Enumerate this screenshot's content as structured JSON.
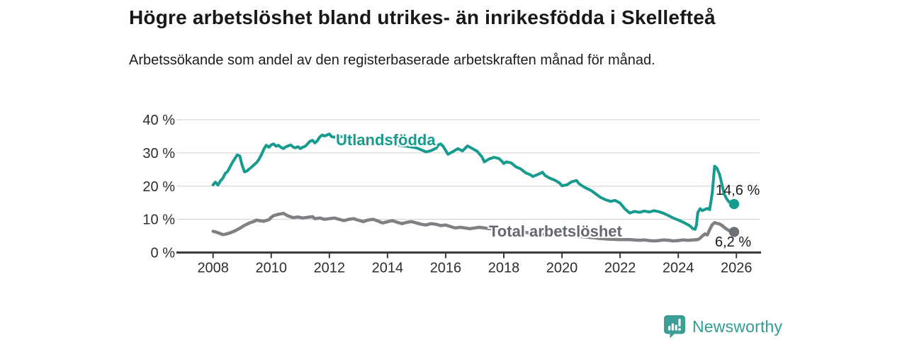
{
  "chart_data": {
    "type": "line",
    "title": "Högre arbetslöshet bland utrikes- än inrikesfödda i Skellefteå",
    "subtitle": "Arbetssökande som andel av den registerbaserade arbetskraften månad för månad.",
    "xlabel": "",
    "ylabel": "",
    "grid": true,
    "legend_position": "inline-labels",
    "xlim": [
      2006.8,
      2026.8
    ],
    "ylim": [
      0,
      40
    ],
    "x_ticks": [
      2008,
      2010,
      2012,
      2014,
      2016,
      2018,
      2020,
      2022,
      2024,
      2026
    ],
    "y_tick_values": [
      0,
      10,
      20,
      30,
      40
    ],
    "y_tick_labels": [
      "0 %",
      "10 %",
      "20 %",
      "30 %",
      "40 %"
    ],
    "axis_color": "#3a3a3a",
    "grid_color": "#d8d8d8",
    "tick_label_color": "#2e2e2e",
    "series": [
      {
        "name": "Utlandsfödda",
        "color": "#169b8e",
        "label_color": "#169b8e",
        "dot_color": "#169b8e",
        "end_label": "14,6 %",
        "end_value": 14.6,
        "points": [
          [
            2008.0,
            20.4
          ],
          [
            2008.08,
            21.2
          ],
          [
            2008.17,
            20.3
          ],
          [
            2008.25,
            21.6
          ],
          [
            2008.33,
            22.3
          ],
          [
            2008.42,
            23.8
          ],
          [
            2008.5,
            24.4
          ],
          [
            2008.58,
            25.7
          ],
          [
            2008.67,
            27.2
          ],
          [
            2008.75,
            28.3
          ],
          [
            2008.83,
            29.4
          ],
          [
            2008.92,
            29.1
          ],
          [
            2009.0,
            26.3
          ],
          [
            2009.08,
            24.3
          ],
          [
            2009.17,
            24.6
          ],
          [
            2009.25,
            25.2
          ],
          [
            2009.33,
            25.8
          ],
          [
            2009.42,
            26.5
          ],
          [
            2009.5,
            27.1
          ],
          [
            2009.58,
            28.1
          ],
          [
            2009.67,
            29.6
          ],
          [
            2009.75,
            31.2
          ],
          [
            2009.83,
            32.3
          ],
          [
            2009.92,
            31.7
          ],
          [
            2010.0,
            32.4
          ],
          [
            2010.08,
            32.7
          ],
          [
            2010.17,
            32.0
          ],
          [
            2010.25,
            32.3
          ],
          [
            2010.33,
            31.7
          ],
          [
            2010.42,
            31.3
          ],
          [
            2010.5,
            31.8
          ],
          [
            2010.58,
            32.1
          ],
          [
            2010.67,
            32.4
          ],
          [
            2010.75,
            31.8
          ],
          [
            2010.83,
            31.5
          ],
          [
            2010.92,
            31.9
          ],
          [
            2011.0,
            31.3
          ],
          [
            2011.08,
            31.7
          ],
          [
            2011.17,
            32.0
          ],
          [
            2011.25,
            32.7
          ],
          [
            2011.33,
            33.5
          ],
          [
            2011.42,
            33.8
          ],
          [
            2011.5,
            33.0
          ],
          [
            2011.58,
            33.6
          ],
          [
            2011.67,
            34.8
          ],
          [
            2011.75,
            35.4
          ],
          [
            2011.83,
            35.1
          ],
          [
            2011.92,
            35.4
          ],
          [
            2012.0,
            35.7
          ],
          [
            2012.08,
            34.9
          ],
          [
            2012.17,
            34.7
          ],
          [
            2012.25,
            35.0
          ],
          [
            2012.5,
            34.8
          ],
          [
            2012.75,
            34.5
          ],
          [
            2013.0,
            34.1
          ],
          [
            2013.25,
            33.8
          ],
          [
            2013.5,
            33.5
          ],
          [
            2013.75,
            33.2
          ],
          [
            2014.0,
            32.9
          ],
          [
            2014.25,
            32.5
          ],
          [
            2014.5,
            32.2
          ],
          [
            2014.75,
            31.9
          ],
          [
            2015.0,
            31.5
          ],
          [
            2015.17,
            30.9
          ],
          [
            2015.33,
            30.3
          ],
          [
            2015.5,
            30.7
          ],
          [
            2015.67,
            31.4
          ],
          [
            2015.75,
            32.4
          ],
          [
            2015.83,
            32.7
          ],
          [
            2015.92,
            31.9
          ],
          [
            2016.08,
            29.6
          ],
          [
            2016.25,
            30.4
          ],
          [
            2016.42,
            31.3
          ],
          [
            2016.58,
            30.6
          ],
          [
            2016.75,
            32.1
          ],
          [
            2016.92,
            31.3
          ],
          [
            2017.08,
            30.5
          ],
          [
            2017.25,
            28.8
          ],
          [
            2017.33,
            27.3
          ],
          [
            2017.5,
            28.2
          ],
          [
            2017.67,
            28.7
          ],
          [
            2017.83,
            28.3
          ],
          [
            2017.92,
            27.6
          ],
          [
            2018.0,
            26.8
          ],
          [
            2018.08,
            27.3
          ],
          [
            2018.25,
            27.0
          ],
          [
            2018.42,
            25.8
          ],
          [
            2018.58,
            25.2
          ],
          [
            2018.75,
            24.0
          ],
          [
            2018.92,
            23.4
          ],
          [
            2019.0,
            22.9
          ],
          [
            2019.17,
            23.5
          ],
          [
            2019.33,
            24.2
          ],
          [
            2019.42,
            23.2
          ],
          [
            2019.58,
            22.4
          ],
          [
            2019.75,
            21.8
          ],
          [
            2019.92,
            20.9
          ],
          [
            2020.0,
            20.1
          ],
          [
            2020.17,
            20.4
          ],
          [
            2020.33,
            21.3
          ],
          [
            2020.5,
            21.7
          ],
          [
            2020.58,
            20.8
          ],
          [
            2020.67,
            20.2
          ],
          [
            2020.83,
            19.4
          ],
          [
            2021.0,
            18.7
          ],
          [
            2021.17,
            17.6
          ],
          [
            2021.33,
            16.6
          ],
          [
            2021.5,
            15.9
          ],
          [
            2021.67,
            15.4
          ],
          [
            2021.83,
            15.7
          ],
          [
            2022.0,
            14.9
          ],
          [
            2022.17,
            13.1
          ],
          [
            2022.33,
            11.9
          ],
          [
            2022.5,
            12.4
          ],
          [
            2022.67,
            12.1
          ],
          [
            2022.83,
            12.5
          ],
          [
            2023.0,
            12.2
          ],
          [
            2023.17,
            12.6
          ],
          [
            2023.33,
            12.3
          ],
          [
            2023.5,
            11.8
          ],
          [
            2023.67,
            11.1
          ],
          [
            2023.83,
            10.4
          ],
          [
            2024.0,
            9.8
          ],
          [
            2024.17,
            9.1
          ],
          [
            2024.33,
            8.4
          ],
          [
            2024.42,
            7.9
          ],
          [
            2024.5,
            7.2
          ],
          [
            2024.58,
            7.0
          ],
          [
            2024.63,
            8.5
          ],
          [
            2024.67,
            12.0
          ],
          [
            2024.75,
            13.2
          ],
          [
            2024.83,
            12.6
          ],
          [
            2024.92,
            13.0
          ],
          [
            2025.0,
            13.3
          ],
          [
            2025.08,
            12.9
          ],
          [
            2025.17,
            18.0
          ],
          [
            2025.25,
            26.0
          ],
          [
            2025.33,
            25.4
          ],
          [
            2025.42,
            23.6
          ],
          [
            2025.5,
            20.6
          ],
          [
            2025.58,
            17.6
          ],
          [
            2025.67,
            16.1
          ],
          [
            2025.75,
            15.2
          ],
          [
            2025.83,
            14.8
          ],
          [
            2025.92,
            14.6
          ]
        ]
      },
      {
        "name": "Total arbetslöshet",
        "color": "#7e8084",
        "label_color": "#65696f",
        "dot_color": "#6d7076",
        "end_label": "6,2 %",
        "end_value": 6.2,
        "points": [
          [
            2008.0,
            6.4
          ],
          [
            2008.08,
            6.2
          ],
          [
            2008.25,
            5.7
          ],
          [
            2008.33,
            5.4
          ],
          [
            2008.42,
            5.5
          ],
          [
            2008.58,
            5.9
          ],
          [
            2008.75,
            6.5
          ],
          [
            2008.92,
            7.3
          ],
          [
            2009.08,
            8.2
          ],
          [
            2009.25,
            8.9
          ],
          [
            2009.42,
            9.4
          ],
          [
            2009.5,
            9.8
          ],
          [
            2009.58,
            9.6
          ],
          [
            2009.75,
            9.4
          ],
          [
            2009.92,
            9.9
          ],
          [
            2010.0,
            10.6
          ],
          [
            2010.08,
            11.1
          ],
          [
            2010.25,
            11.5
          ],
          [
            2010.42,
            11.8
          ],
          [
            2010.5,
            11.4
          ],
          [
            2010.58,
            11.0
          ],
          [
            2010.75,
            10.5
          ],
          [
            2010.92,
            10.7
          ],
          [
            2011.08,
            10.4
          ],
          [
            2011.25,
            10.6
          ],
          [
            2011.42,
            10.8
          ],
          [
            2011.5,
            10.2
          ],
          [
            2011.67,
            10.4
          ],
          [
            2011.83,
            10.0
          ],
          [
            2012.0,
            10.2
          ],
          [
            2012.17,
            10.4
          ],
          [
            2012.33,
            10.0
          ],
          [
            2012.5,
            9.6
          ],
          [
            2012.67,
            10.0
          ],
          [
            2012.83,
            10.2
          ],
          [
            2013.0,
            9.7
          ],
          [
            2013.17,
            9.3
          ],
          [
            2013.33,
            9.8
          ],
          [
            2013.5,
            10.0
          ],
          [
            2013.67,
            9.5
          ],
          [
            2013.83,
            8.9
          ],
          [
            2014.0,
            9.3
          ],
          [
            2014.17,
            9.6
          ],
          [
            2014.33,
            9.1
          ],
          [
            2014.5,
            8.7
          ],
          [
            2014.67,
            9.1
          ],
          [
            2014.83,
            9.3
          ],
          [
            2015.0,
            8.9
          ],
          [
            2015.17,
            8.5
          ],
          [
            2015.33,
            8.3
          ],
          [
            2015.5,
            8.7
          ],
          [
            2015.67,
            8.5
          ],
          [
            2015.83,
            8.1
          ],
          [
            2016.0,
            8.3
          ],
          [
            2016.17,
            7.8
          ],
          [
            2016.33,
            7.4
          ],
          [
            2016.5,
            7.6
          ],
          [
            2016.67,
            7.4
          ],
          [
            2016.83,
            7.2
          ],
          [
            2017.0,
            7.4
          ],
          [
            2017.17,
            7.6
          ],
          [
            2017.33,
            7.4
          ],
          [
            2017.5,
            7.2
          ],
          [
            2017.75,
            7.0
          ],
          [
            2018.0,
            6.7
          ],
          [
            2018.33,
            6.4
          ],
          [
            2018.67,
            6.1
          ],
          [
            2019.0,
            5.8
          ],
          [
            2019.33,
            5.5
          ],
          [
            2019.67,
            5.3
          ],
          [
            2020.0,
            5.1
          ],
          [
            2020.33,
            5.0
          ],
          [
            2020.67,
            4.8
          ],
          [
            2021.0,
            4.5
          ],
          [
            2021.33,
            4.2
          ],
          [
            2021.67,
            4.0
          ],
          [
            2022.0,
            3.9
          ],
          [
            2022.33,
            3.9
          ],
          [
            2022.5,
            3.8
          ],
          [
            2022.67,
            3.7
          ],
          [
            2022.83,
            3.8
          ],
          [
            2023.0,
            3.6
          ],
          [
            2023.17,
            3.5
          ],
          [
            2023.33,
            3.6
          ],
          [
            2023.5,
            3.8
          ],
          [
            2023.67,
            3.7
          ],
          [
            2023.83,
            3.5
          ],
          [
            2024.0,
            3.6
          ],
          [
            2024.17,
            3.8
          ],
          [
            2024.33,
            3.7
          ],
          [
            2024.5,
            3.8
          ],
          [
            2024.67,
            3.9
          ],
          [
            2024.75,
            4.3
          ],
          [
            2024.83,
            5.0
          ],
          [
            2024.92,
            5.6
          ],
          [
            2025.0,
            5.3
          ],
          [
            2025.08,
            6.9
          ],
          [
            2025.17,
            8.4
          ],
          [
            2025.25,
            9.0
          ],
          [
            2025.33,
            8.8
          ],
          [
            2025.42,
            8.6
          ],
          [
            2025.5,
            8.2
          ],
          [
            2025.58,
            7.6
          ],
          [
            2025.67,
            7.0
          ],
          [
            2025.75,
            6.6
          ],
          [
            2025.83,
            6.4
          ],
          [
            2025.92,
            6.2
          ]
        ]
      }
    ]
  },
  "footer": {
    "brand": "Newsworthy",
    "brand_color": "#2f9c94",
    "icon_color": "#3d9e96"
  }
}
